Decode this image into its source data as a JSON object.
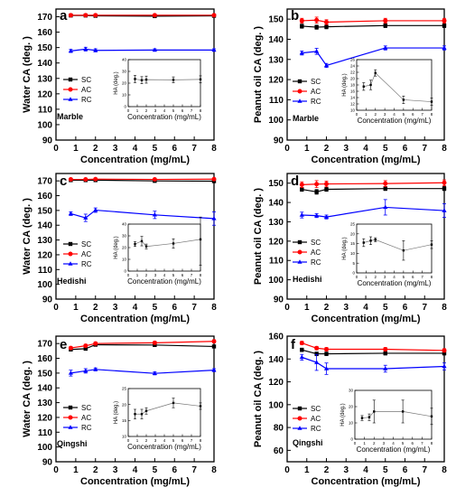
{
  "chart_data": [
    {
      "type": "line",
      "panel_label": "a",
      "substrate_label": "Marble",
      "xlabel": "Concentration (mg/mL)",
      "ylabel": "Water CA (deg. )",
      "xlim": [
        0,
        8
      ],
      "ylim": [
        90,
        175
      ],
      "x_ticks": [
        0,
        1,
        2,
        3,
        4,
        5,
        6,
        7,
        8
      ],
      "y_ticks": [
        90,
        100,
        110,
        120,
        130,
        140,
        150,
        160,
        170
      ],
      "x": [
        0.75,
        1.5,
        2,
        5,
        8
      ],
      "series": [
        {
          "name": "SC",
          "color": "#000000",
          "marker": "square",
          "values": [
            170.8,
            170.8,
            170.6,
            170.4,
            170.6
          ],
          "errors": [
            0.6,
            0.6,
            0.6,
            0.6,
            0.6
          ]
        },
        {
          "name": "AC",
          "color": "#ff0000",
          "marker": "circle",
          "values": [
            171.0,
            171.0,
            171.0,
            171.0,
            171.0
          ],
          "errors": [
            0.5,
            0.5,
            0.5,
            0.5,
            0.5
          ]
        },
        {
          "name": "RC",
          "color": "#0000ff",
          "marker": "triangle",
          "values": [
            147.8,
            149.0,
            148.2,
            148.4,
            148.4
          ],
          "errors": [
            1.0,
            1.2,
            1.0,
            0.8,
            0.8
          ]
        }
      ],
      "inset": {
        "ylabel": "HA (deg.)",
        "xlabel": "",
        "xlim": [
          0,
          8
        ],
        "ylim": [
          0,
          40
        ],
        "x_ticks": [
          0,
          1,
          2,
          3,
          4,
          5,
          6,
          7,
          8
        ],
        "y_ticks": [
          0,
          10,
          20,
          30,
          40
        ],
        "x": [
          0.75,
          1.5,
          2,
          5,
          8
        ],
        "values": [
          23.5,
          22.5,
          23.0,
          22.8,
          23.2
        ],
        "errors": [
          3,
          3,
          3,
          2.5,
          3
        ]
      }
    },
    {
      "type": "line",
      "panel_label": "b",
      "substrate_label": "Marble",
      "xlabel": "Concentration (mg/mL)",
      "ylabel": "Peanut oil CA (deg. )",
      "xlim": [
        0,
        8
      ],
      "ylim": [
        90,
        155
      ],
      "x_ticks": [
        0,
        1,
        2,
        3,
        4,
        5,
        6,
        7,
        8
      ],
      "y_ticks": [
        90,
        100,
        110,
        120,
        130,
        140,
        150
      ],
      "x": [
        0.75,
        1.5,
        2,
        5,
        8
      ],
      "series": [
        {
          "name": "SC",
          "color": "#000000",
          "marker": "square",
          "values": [
            146.5,
            146.0,
            146.2,
            146.8,
            146.8
          ],
          "errors": [
            1,
            1,
            1,
            1,
            1
          ]
        },
        {
          "name": "AC",
          "color": "#ff0000",
          "marker": "circle",
          "values": [
            149.2,
            149.5,
            148.5,
            149.2,
            149.2
          ],
          "errors": [
            1.2,
            1.5,
            1.2,
            1.2,
            1.2
          ]
        },
        {
          "name": "RC",
          "color": "#0000ff",
          "marker": "triangle",
          "values": [
            133.2,
            134.0,
            127.0,
            135.7,
            135.7
          ],
          "errors": [
            1,
            1.5,
            1,
            1,
            1
          ]
        }
      ],
      "inset": {
        "ylabel": "HA (deg.)",
        "xlabel": "",
        "xlim": [
          0,
          8
        ],
        "ylim": [
          10,
          26
        ],
        "x_ticks": [
          0,
          1,
          2,
          3,
          4,
          5,
          6,
          7,
          8
        ],
        "y_ticks": [
          10,
          12,
          14,
          16,
          18,
          20,
          22,
          24,
          26
        ],
        "x": [
          0.75,
          1.5,
          2,
          5,
          8
        ],
        "values": [
          17.5,
          18.0,
          21.8,
          13.3,
          12.7
        ],
        "errors": [
          1.2,
          1.5,
          1.0,
          1.2,
          1.2
        ]
      }
    },
    {
      "type": "line",
      "panel_label": "c",
      "substrate_label": "Hedishi",
      "xlabel": "Concentration (mg/mL)",
      "ylabel": "Water CA (deg. )",
      "xlim": [
        0,
        8
      ],
      "ylim": [
        90,
        175
      ],
      "x_ticks": [
        0,
        1,
        2,
        3,
        4,
        5,
        6,
        7,
        8
      ],
      "y_ticks": [
        90,
        100,
        110,
        120,
        130,
        140,
        150,
        160,
        170
      ],
      "x": [
        0.75,
        1.5,
        2,
        5,
        8
      ],
      "series": [
        {
          "name": "SC",
          "color": "#000000",
          "marker": "square",
          "values": [
            170.5,
            170.5,
            170.5,
            170.0,
            169.8
          ],
          "errors": [
            0.8,
            0.8,
            0.8,
            0.8,
            0.8
          ]
        },
        {
          "name": "AC",
          "color": "#ff0000",
          "marker": "circle",
          "values": [
            171.0,
            171.0,
            171.2,
            171.0,
            171.2
          ],
          "errors": [
            0.8,
            0.8,
            0.8,
            0.8,
            0.8
          ]
        },
        {
          "name": "RC",
          "color": "#0000ff",
          "marker": "triangle",
          "values": [
            147.8,
            145.0,
            150.2,
            147.0,
            144.5
          ],
          "errors": [
            1.2,
            2.5,
            1.5,
            2.5,
            4.5
          ]
        }
      ],
      "inset": {
        "ylabel": "HA (deg.)",
        "xlabel": "",
        "xlim": [
          0,
          8
        ],
        "ylim": [
          0,
          40
        ],
        "x_ticks": [
          0,
          1,
          2,
          3,
          4,
          5,
          6,
          7,
          8
        ],
        "y_ticks": [
          0,
          10,
          20,
          30,
          40
        ],
        "x": [
          0.75,
          1.5,
          2,
          5,
          8
        ],
        "values": [
          23.0,
          25.5,
          21.0,
          23.5,
          27.0
        ],
        "errors": [
          2,
          4,
          2,
          4,
          22
        ]
      }
    },
    {
      "type": "line",
      "panel_label": "d",
      "substrate_label": "Hedishi",
      "xlabel": "Concentration (mg/mL)",
      "ylabel": "Peanut oil CA (deg. )",
      "xlim": [
        0,
        8
      ],
      "ylim": [
        90,
        155
      ],
      "x_ticks": [
        0,
        1,
        2,
        3,
        4,
        5,
        6,
        7,
        8
      ],
      "y_ticks": [
        90,
        100,
        110,
        120,
        130,
        140,
        150
      ],
      "x": [
        0.75,
        1.5,
        2,
        5,
        8
      ],
      "series": [
        {
          "name": "SC",
          "color": "#000000",
          "marker": "square",
          "values": [
            146.8,
            145.5,
            146.8,
            147.2,
            147.2
          ],
          "errors": [
            1,
            1.2,
            1,
            1,
            1
          ]
        },
        {
          "name": "AC",
          "color": "#ff0000",
          "marker": "circle",
          "values": [
            149.2,
            149.5,
            149.6,
            149.8,
            150.2
          ],
          "errors": [
            1.5,
            1.8,
            1.5,
            1.5,
            1.5
          ]
        },
        {
          "name": "RC",
          "color": "#0000ff",
          "marker": "triangle",
          "values": [
            133.5,
            133.2,
            132.5,
            137.5,
            135.8
          ],
          "errors": [
            1.5,
            1.0,
            1.0,
            4.0,
            3.5
          ]
        }
      ],
      "inset": {
        "ylabel": "HA (deg.)",
        "xlabel": "",
        "xlim": [
          0,
          8
        ],
        "ylim": [
          0,
          25
        ],
        "x_ticks": [
          0,
          1,
          2,
          3,
          4,
          5,
          6,
          7,
          8
        ],
        "y_ticks": [
          0,
          5,
          10,
          15,
          20,
          25
        ],
        "x": [
          0.75,
          1.5,
          2,
          5,
          8
        ],
        "values": [
          15.5,
          16.5,
          17.0,
          11.5,
          14.5
        ],
        "errors": [
          2.0,
          2.0,
          1.0,
          5.0,
          2.0
        ]
      }
    },
    {
      "type": "line",
      "panel_label": "e",
      "substrate_label": "Qingshi",
      "xlabel": "Concentration (mg/mL)",
      "ylabel": "Water CA (deg. )",
      "xlim": [
        0,
        8
      ],
      "ylim": [
        90,
        175
      ],
      "x_ticks": [
        0,
        1,
        2,
        3,
        4,
        5,
        6,
        7,
        8
      ],
      "y_ticks": [
        90,
        100,
        110,
        120,
        130,
        140,
        150,
        160,
        170
      ],
      "x": [
        0.75,
        1.5,
        2,
        5,
        8
      ],
      "series": [
        {
          "name": "SC",
          "color": "#000000",
          "marker": "square",
          "values": [
            166.0,
            166.5,
            169.2,
            169.0,
            168.0
          ],
          "errors": [
            1.0,
            1.0,
            1.0,
            1.0,
            1.0
          ]
        },
        {
          "name": "AC",
          "color": "#ff0000",
          "marker": "circle",
          "values": [
            167.0,
            168.5,
            170.0,
            170.5,
            171.5
          ],
          "errors": [
            1.0,
            1.0,
            1.0,
            1.0,
            1.0
          ]
        },
        {
          "name": "RC",
          "color": "#0000ff",
          "marker": "triangle",
          "values": [
            150.0,
            151.5,
            152.5,
            149.8,
            152.0
          ],
          "errors": [
            2.0,
            1.5,
            1.0,
            1.0,
            1.0
          ]
        }
      ],
      "inset": {
        "ylabel": "HA (deg.)",
        "xlabel": "",
        "xlim": [
          0,
          8
        ],
        "ylim": [
          10,
          25
        ],
        "x_ticks": [
          0,
          1,
          2,
          3,
          4,
          5,
          6,
          7,
          8
        ],
        "y_ticks": [
          10,
          15,
          20,
          25
        ],
        "x": [
          0.75,
          1.5,
          2,
          5,
          8
        ],
        "values": [
          17.0,
          17.0,
          18.0,
          20.5,
          19.5
        ],
        "errors": [
          1.5,
          1.5,
          1.0,
          1.5,
          1.0
        ]
      }
    },
    {
      "type": "line",
      "panel_label": "f",
      "substrate_label": "Qingshi",
      "xlabel": "Concentration (mg/mL)",
      "ylabel": "Peanut oil CA (deg. )",
      "xlim": [
        0,
        8
      ],
      "ylim": [
        50,
        160
      ],
      "x_ticks": [
        0,
        1,
        2,
        3,
        4,
        5,
        6,
        7,
        8
      ],
      "y_ticks": [
        60,
        80,
        100,
        120,
        140,
        160
      ],
      "x": [
        0.75,
        1.5,
        2,
        5,
        8
      ],
      "series": [
        {
          "name": "SC",
          "color": "#000000",
          "marker": "square",
          "values": [
            148.0,
            144.5,
            144.5,
            145.0,
            145.0
          ],
          "errors": [
            1.5,
            1.5,
            1.5,
            1.5,
            1.5
          ]
        },
        {
          "name": "AC",
          "color": "#ff0000",
          "marker": "circle",
          "values": [
            154.0,
            149.5,
            148.5,
            148.5,
            147.5
          ],
          "errors": [
            1.5,
            1.5,
            1.5,
            1.5,
            1.5
          ]
        },
        {
          "name": "RC",
          "color": "#0000ff",
          "marker": "triangle",
          "values": [
            141.5,
            137.0,
            131.5,
            131.5,
            133.5
          ],
          "errors": [
            2.5,
            7.0,
            5.0,
            3.0,
            3.0
          ]
        }
      ],
      "inset": {
        "ylabel": "HA (deg.)",
        "xlabel": "",
        "xlim": [
          0,
          8
        ],
        "ylim": [
          0,
          30
        ],
        "x_ticks": [
          0,
          1,
          2,
          3,
          4,
          5,
          6,
          7,
          8
        ],
        "y_ticks": [
          0,
          10,
          20,
          30
        ],
        "x": [
          0.75,
          1.5,
          2,
          5,
          8
        ],
        "values": [
          13.0,
          13.5,
          17.0,
          17.0,
          14.0
        ],
        "errors": [
          1.5,
          2.0,
          7.0,
          7.0,
          5.0
        ]
      }
    }
  ]
}
